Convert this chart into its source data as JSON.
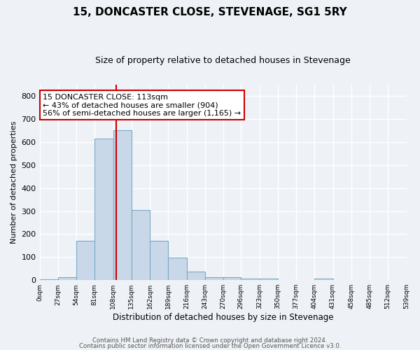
{
  "title": "15, DONCASTER CLOSE, STEVENAGE, SG1 5RY",
  "subtitle": "Size of property relative to detached houses in Stevenage",
  "xlabel": "Distribution of detached houses by size in Stevenage",
  "ylabel": "Number of detached properties",
  "bin_edges": [
    0,
    27,
    54,
    81,
    108,
    135,
    162,
    189,
    216,
    243,
    270,
    296,
    323,
    350,
    377,
    404,
    431,
    458,
    485,
    512,
    539
  ],
  "bar_heights": [
    5,
    12,
    170,
    615,
    650,
    305,
    170,
    97,
    38,
    13,
    13,
    7,
    7,
    0,
    0,
    7,
    0,
    0,
    0,
    0
  ],
  "bar_color": "#c8d8e8",
  "bar_edge_color": "#7aaac8",
  "property_size": 113,
  "red_line_color": "#cc0000",
  "annotation_text": "15 DONCASTER CLOSE: 113sqm\n← 43% of detached houses are smaller (904)\n56% of semi-detached houses are larger (1,165) →",
  "annotation_box_color": "#ffffff",
  "annotation_box_edge": "#cc0000",
  "ylim": [
    0,
    850
  ],
  "yticks": [
    0,
    100,
    200,
    300,
    400,
    500,
    600,
    700,
    800
  ],
  "xlim": [
    0,
    539
  ],
  "background_color": "#eef2f7",
  "grid_color": "#ffffff",
  "footer_line1": "Contains HM Land Registry data © Crown copyright and database right 2024.",
  "footer_line2": "Contains public sector information licensed under the Open Government Licence v3.0."
}
